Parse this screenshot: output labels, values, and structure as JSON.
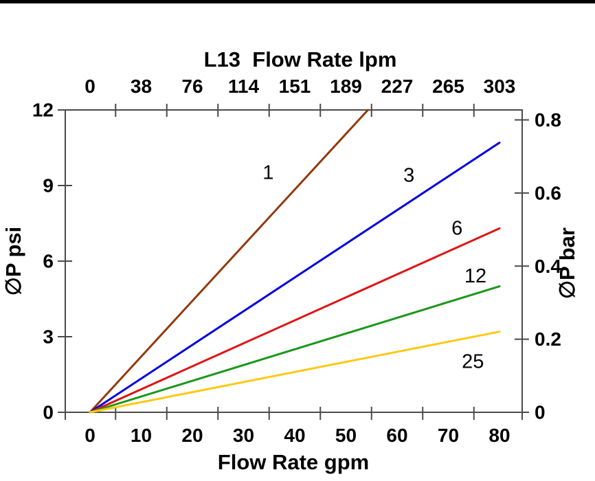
{
  "page": {
    "background": "#ffffff",
    "top_border_color": "#000000"
  },
  "chart_data": {
    "type": "line",
    "title": "L13  Flow Rate lpm",
    "grid": false,
    "legend": "inline-curve-labels",
    "top_axis": {
      "title": "L13  Flow Rate lpm",
      "tick_labels": [
        "0",
        "38",
        "76",
        "114",
        "151",
        "189",
        "227",
        "265",
        "303"
      ],
      "positions_gpm": [
        0,
        10,
        20,
        30,
        40,
        50,
        60,
        70,
        80
      ]
    },
    "bottom_axis": {
      "title": "Flow Rate gpm",
      "tick_labels": [
        "0",
        "10",
        "20",
        "30",
        "40",
        "50",
        "60",
        "70",
        "80"
      ],
      "positions_gpm": [
        0,
        10,
        20,
        30,
        40,
        50,
        60,
        70,
        80
      ]
    },
    "left_axis": {
      "title": "∅P psi",
      "tick_labels": [
        "0",
        "3",
        "6",
        "9",
        "12"
      ],
      "positions_psi": [
        0,
        3,
        6,
        9,
        12
      ],
      "range_psi": [
        0,
        12
      ]
    },
    "right_axis": {
      "title": "∅P bar",
      "tick_labels": [
        "0",
        "0.2",
        "0.4",
        "0.6",
        "0.8"
      ],
      "positions_bar": [
        0,
        0.2,
        0.4,
        0.6,
        0.8
      ],
      "range_bar": [
        0,
        0.8
      ]
    },
    "x_range_gpm": [
      -4.8,
      84.4
    ],
    "series": [
      {
        "label": "1",
        "color": "#93390E",
        "points_gpm_psi": [
          [
            0,
            0
          ],
          [
            54.3,
            12.0
          ]
        ],
        "label_pos_gpm_psi": [
          34.8,
          9.5
        ]
      },
      {
        "label": "3",
        "color": "#0000E0",
        "points_gpm_psi": [
          [
            0,
            0
          ],
          [
            80,
            10.7
          ]
        ],
        "label_pos_gpm_psi": [
          62.3,
          9.4
        ]
      },
      {
        "label": "6",
        "color": "#E01414",
        "points_gpm_psi": [
          [
            0,
            0
          ],
          [
            80,
            7.3
          ]
        ],
        "label_pos_gpm_psi": [
          71.7,
          7.3
        ]
      },
      {
        "label": "12",
        "color": "#189718",
        "points_gpm_psi": [
          [
            0,
            0
          ],
          [
            80,
            5.0
          ]
        ],
        "label_pos_gpm_psi": [
          75.3,
          5.4
        ]
      },
      {
        "label": "25",
        "color": "#FFC814",
        "points_gpm_psi": [
          [
            0,
            0
          ],
          [
            80,
            3.2
          ]
        ],
        "label_pos_gpm_psi": [
          74.8,
          2.0
        ]
      }
    ]
  }
}
